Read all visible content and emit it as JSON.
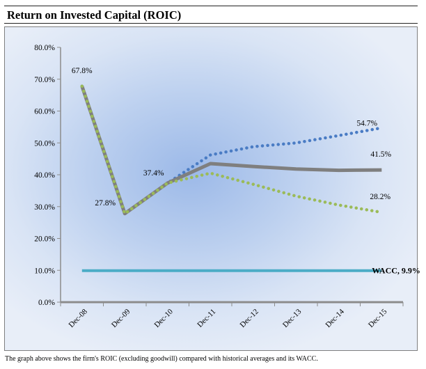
{
  "title": "Return on Invested Capital (ROIC)",
  "caption": "The graph above shows the firm's ROIC (excluding goodwill) compared with historical averages and its WACC.",
  "chart_data": {
    "type": "line",
    "categories": [
      "Dec-08",
      "Dec-09",
      "Dec-10",
      "Dec-11",
      "Dec-12",
      "Dec-13",
      "Dec-14",
      "Dec-15"
    ],
    "ylim": [
      0,
      80
    ],
    "yticks": [
      "0.0%",
      "10.0%",
      "20.0%",
      "30.0%",
      "40.0%",
      "50.0%",
      "60.0%",
      "70.0%",
      "80.0%"
    ],
    "grid": false,
    "legend": "none",
    "series": [
      {
        "values": [
          67.8,
          27.8,
          37.4,
          46.2,
          48.8,
          50.0,
          52.3,
          54.7
        ],
        "color": "#4a7cc4",
        "style": "dotted"
      },
      {
        "values": [
          67.8,
          27.8,
          37.4,
          43.5,
          42.6,
          41.8,
          41.4,
          41.5
        ],
        "color": "#7f7f7f",
        "style": "solid"
      },
      {
        "values": [
          67.8,
          27.8,
          37.4,
          40.5,
          37.0,
          33.3,
          30.5,
          28.2
        ],
        "color": "#9bbb59",
        "style": "dotted"
      },
      {
        "values": [
          9.9,
          9.9,
          9.9,
          9.9,
          9.9,
          9.9,
          9.9,
          9.9
        ],
        "color": "#4bacc6",
        "style": "solid"
      }
    ],
    "annotations": [
      {
        "text": "67.8%",
        "x": "Dec-08",
        "y": 67.8
      },
      {
        "text": "27.8%",
        "x": "Dec-09",
        "y": 27.8
      },
      {
        "text": "37.4%",
        "x": "Dec-10",
        "y": 37.4
      },
      {
        "text": "54.7%",
        "x": "Dec-15",
        "y": 54.7
      },
      {
        "text": "41.5%",
        "x": "Dec-15",
        "y": 41.5
      },
      {
        "text": "28.2%",
        "x": "Dec-15",
        "y": 28.2
      },
      {
        "text": "WACC, 9.9%",
        "x": "Dec-15",
        "y": 9.9
      }
    ]
  }
}
